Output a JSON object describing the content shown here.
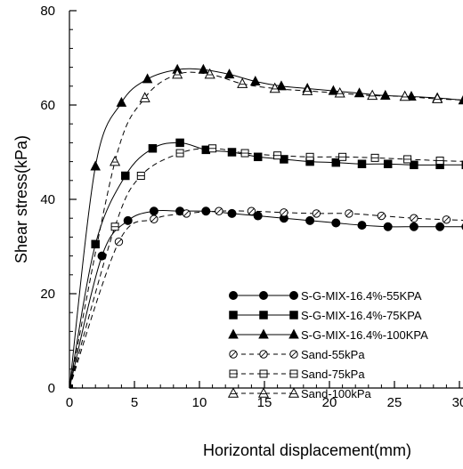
{
  "chart_data": {
    "type": "line",
    "title": "",
    "xlabel": "Horizontal displacement(mm)",
    "ylabel": "Shear stress(kPa)",
    "xlim": [
      0,
      30
    ],
    "ylim": [
      0,
      80
    ],
    "x_ticks": [
      0,
      5,
      10,
      15,
      20,
      25,
      30
    ],
    "y_ticks": [
      0,
      20,
      40,
      60,
      80
    ],
    "x_tick_labels": [
      "0",
      "5",
      "10",
      "15",
      "20",
      "25",
      "30"
    ],
    "y_tick_labels": [
      "0",
      "20",
      "40",
      "60",
      "80"
    ],
    "grid": false,
    "legend_position": "bottom-right",
    "series": [
      {
        "name": "S-G-MIX-16.4%-55KPA",
        "line": "solid",
        "marker": "circle-filled",
        "x": [
          0,
          2.5,
          4.5,
          6.5,
          8.5,
          10.5,
          12.5,
          14.5,
          16.5,
          18.5,
          20.5,
          22.5,
          24.5,
          26.5,
          28.5,
          30.5
        ],
        "y": [
          0,
          28,
          35.5,
          37.5,
          37.5,
          37.5,
          37,
          36.5,
          36,
          35.5,
          35,
          34.5,
          34.2,
          34.2,
          34.2,
          34.2
        ]
      },
      {
        "name": "S-G-MIX-16.4%-75KPA",
        "line": "solid",
        "marker": "square-filled",
        "x": [
          0,
          2,
          4.3,
          6.4,
          8.5,
          10.5,
          12.5,
          14.5,
          16.5,
          18.5,
          20.5,
          22.5,
          24.5,
          26.5,
          28.5,
          30.5
        ],
        "y": [
          0,
          30.5,
          45,
          50.8,
          52,
          50.5,
          50,
          49,
          48.5,
          48,
          47.8,
          47.5,
          47.5,
          47.3,
          47.3,
          47.3
        ]
      },
      {
        "name": "S-G-MIX-16.4%-100KPA",
        "line": "solid",
        "marker": "triangle-filled",
        "x": [
          0,
          2,
          4,
          6,
          8.3,
          10.3,
          12.3,
          14.3,
          16.3,
          18.3,
          20.3,
          22.3,
          24.3,
          26.3,
          28.3,
          30.3
        ],
        "y": [
          0,
          47,
          60.5,
          65.5,
          67.5,
          67.5,
          66.5,
          65,
          64,
          63.5,
          63,
          62.5,
          62,
          61.8,
          61.5,
          61
        ]
      },
      {
        "name": "Sand-55kPa",
        "line": "dashed",
        "marker": "circle-open",
        "x": [
          0,
          3.8,
          6.5,
          9,
          11.5,
          14,
          16.5,
          19,
          21.5,
          24,
          26.5,
          29,
          31
        ],
        "y": [
          0,
          31,
          35.8,
          37,
          37.5,
          37.5,
          37.2,
          37,
          37,
          36.5,
          36,
          35.7,
          35.5
        ]
      },
      {
        "name": "Sand-75kPa",
        "line": "dashed",
        "marker": "square-open",
        "x": [
          0,
          3.5,
          5.5,
          8.5,
          11,
          13.5,
          16,
          18.5,
          21,
          23.5,
          26,
          28.5,
          31
        ],
        "y": [
          0,
          34.2,
          45,
          49.8,
          50.8,
          49.8,
          49.3,
          49,
          49,
          48.8,
          48.5,
          48.2,
          48
        ]
      },
      {
        "name": "Sand-100kPa",
        "line": "dashed",
        "marker": "triangle-open",
        "x": [
          0,
          3.5,
          5.8,
          8.3,
          10.8,
          13.3,
          15.8,
          18.3,
          20.8,
          23.3,
          25.8,
          28.3,
          31
        ],
        "y": [
          0,
          48,
          61.5,
          66.5,
          66.5,
          64.5,
          63.5,
          63,
          62.5,
          62,
          61.8,
          61.3,
          61
        ]
      }
    ]
  }
}
